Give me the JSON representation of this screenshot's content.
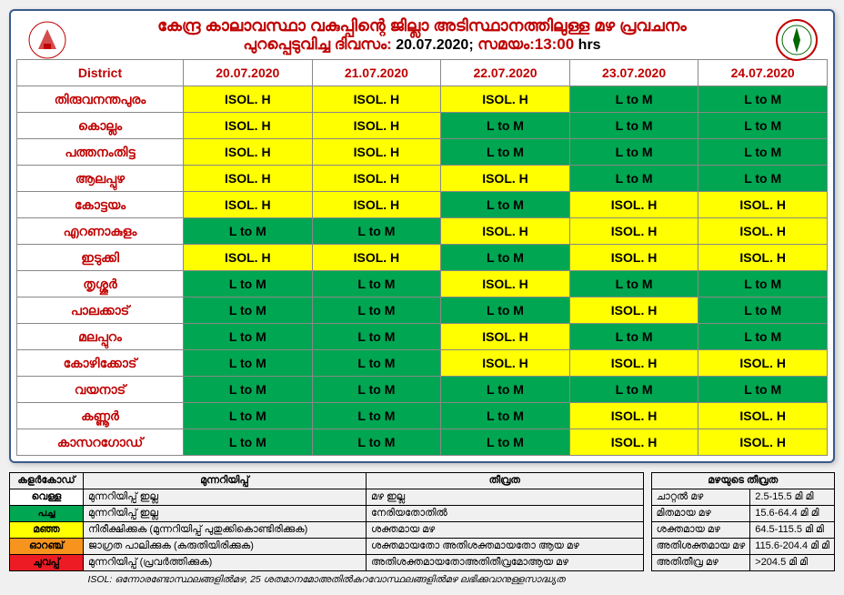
{
  "header": {
    "title": "കേന്ദ്ര കാലാവസ്ഥാ വകുപ്പിന്റെ ജില്ലാ അടിസ്ഥാനത്തിലുള്ള മഴ പ്രവചനം",
    "subtitle": "പുറപ്പെടുവിച്ച ദിവസം:",
    "date": "20.07.2020;",
    "time_label": "സമയം:13:00",
    "hrs": "hrs"
  },
  "columns": [
    "District",
    "20.07.2020",
    "21.07.2020",
    "22.07.2020",
    "23.07.2020",
    "24.07.2020"
  ],
  "colors": {
    "green": "#00a651",
    "yellow": "#ffff00",
    "orange": "#f7941d",
    "red": "#ed1c24",
    "white": "#ffffff",
    "header_red": "#c00000"
  },
  "districts": [
    {
      "name": "തിരുവനന്തപുരം",
      "cells": [
        {
          "v": "ISOL. H",
          "c": "yellow"
        },
        {
          "v": "ISOL. H",
          "c": "yellow"
        },
        {
          "v": "ISOL. H",
          "c": "yellow"
        },
        {
          "v": "L to M",
          "c": "green"
        },
        {
          "v": "L to M",
          "c": "green"
        }
      ]
    },
    {
      "name": "കൊല്ലം",
      "cells": [
        {
          "v": "ISOL. H",
          "c": "yellow"
        },
        {
          "v": "ISOL. H",
          "c": "yellow"
        },
        {
          "v": "L to M",
          "c": "green"
        },
        {
          "v": "L to M",
          "c": "green"
        },
        {
          "v": "L to M",
          "c": "green"
        }
      ]
    },
    {
      "name": "പത്തനംതിട്ട",
      "cells": [
        {
          "v": "ISOL. H",
          "c": "yellow"
        },
        {
          "v": "ISOL. H",
          "c": "yellow"
        },
        {
          "v": "L to M",
          "c": "green"
        },
        {
          "v": "L to M",
          "c": "green"
        },
        {
          "v": "L to M",
          "c": "green"
        }
      ]
    },
    {
      "name": "ആലപ്പുഴ",
      "cells": [
        {
          "v": "ISOL. H",
          "c": "yellow"
        },
        {
          "v": "ISOL. H",
          "c": "yellow"
        },
        {
          "v": "ISOL. H",
          "c": "yellow"
        },
        {
          "v": "L to M",
          "c": "green"
        },
        {
          "v": "L to M",
          "c": "green"
        }
      ]
    },
    {
      "name": "കോട്ടയം",
      "cells": [
        {
          "v": "ISOL. H",
          "c": "yellow"
        },
        {
          "v": "ISOL. H",
          "c": "yellow"
        },
        {
          "v": "L to M",
          "c": "green"
        },
        {
          "v": "ISOL. H",
          "c": "yellow"
        },
        {
          "v": "ISOL. H",
          "c": "yellow"
        }
      ]
    },
    {
      "name": "എറണാകുളം",
      "cells": [
        {
          "v": "L to M",
          "c": "green"
        },
        {
          "v": "L to M",
          "c": "green"
        },
        {
          "v": "ISOL. H",
          "c": "yellow"
        },
        {
          "v": "ISOL. H",
          "c": "yellow"
        },
        {
          "v": "ISOL. H",
          "c": "yellow"
        }
      ]
    },
    {
      "name": "ഇടുക്കി",
      "cells": [
        {
          "v": "ISOL. H",
          "c": "yellow"
        },
        {
          "v": "ISOL. H",
          "c": "yellow"
        },
        {
          "v": "L to M",
          "c": "green"
        },
        {
          "v": "ISOL. H",
          "c": "yellow"
        },
        {
          "v": "ISOL. H",
          "c": "yellow"
        }
      ]
    },
    {
      "name": "തൃശ്ശൂർ",
      "cells": [
        {
          "v": "L to M",
          "c": "green"
        },
        {
          "v": "L to M",
          "c": "green"
        },
        {
          "v": "ISOL. H",
          "c": "yellow"
        },
        {
          "v": "L to M",
          "c": "green"
        },
        {
          "v": "L to M",
          "c": "green"
        }
      ]
    },
    {
      "name": "പാലക്കാട്",
      "cells": [
        {
          "v": "L to M",
          "c": "green"
        },
        {
          "v": "L to M",
          "c": "green"
        },
        {
          "v": "L to M",
          "c": "green"
        },
        {
          "v": "ISOL. H",
          "c": "yellow"
        },
        {
          "v": "L to M",
          "c": "green"
        }
      ]
    },
    {
      "name": "മലപ്പുറം",
      "cells": [
        {
          "v": "L to M",
          "c": "green"
        },
        {
          "v": "L to M",
          "c": "green"
        },
        {
          "v": "ISOL. H",
          "c": "yellow"
        },
        {
          "v": "L to M",
          "c": "green"
        },
        {
          "v": "L to M",
          "c": "green"
        }
      ]
    },
    {
      "name": "കോഴിക്കോട്",
      "cells": [
        {
          "v": "L to M",
          "c": "green"
        },
        {
          "v": "L to M",
          "c": "green"
        },
        {
          "v": "ISOL. H",
          "c": "yellow"
        },
        {
          "v": "ISOL. H",
          "c": "yellow"
        },
        {
          "v": "ISOL. H",
          "c": "yellow"
        }
      ]
    },
    {
      "name": "വയനാട്",
      "cells": [
        {
          "v": "L to M",
          "c": "green"
        },
        {
          "v": "L to M",
          "c": "green"
        },
        {
          "v": "L to M",
          "c": "green"
        },
        {
          "v": "L to M",
          "c": "green"
        },
        {
          "v": "L to M",
          "c": "green"
        }
      ]
    },
    {
      "name": "കണ്ണൂർ",
      "cells": [
        {
          "v": "L to M",
          "c": "green"
        },
        {
          "v": "L to M",
          "c": "green"
        },
        {
          "v": "L to M",
          "c": "green"
        },
        {
          "v": "ISOL. H",
          "c": "yellow"
        },
        {
          "v": "ISOL. H",
          "c": "yellow"
        }
      ]
    },
    {
      "name": "കാസറഗോഡ്",
      "cells": [
        {
          "v": "L to M",
          "c": "green"
        },
        {
          "v": "L to M",
          "c": "green"
        },
        {
          "v": "L to M",
          "c": "green"
        },
        {
          "v": "ISOL. H",
          "c": "yellow"
        },
        {
          "v": "ISOL. H",
          "c": "yellow"
        }
      ]
    }
  ],
  "legend": {
    "headers": [
      "കളർകോഡ്",
      "മുന്നറിയിപ്പ്",
      "തീവ്രത"
    ],
    "rows": [
      {
        "color": "white",
        "label": "വെള്ള",
        "warn": "മുന്നറിയിപ്പ് ഇല്ല",
        "intensity": "മഴ ഇല്ല"
      },
      {
        "color": "green",
        "label": "പച്ച",
        "warn": "മുന്നറിയിപ്പ് ഇല്ല",
        "intensity": "നേരിയതോതിൽ"
      },
      {
        "color": "yellow",
        "label": "മഞ്ഞ",
        "warn": "നിരീക്ഷിക്കുക (മുന്നറിയിപ്പ് പുതുക്കികൊണ്ടിരിക്കുക)",
        "intensity": "ശക്തമായ മഴ"
      },
      {
        "color": "orange",
        "label": "ഓറഞ്ച്",
        "warn": "ജാഗ്രത പാലിക്കുക (കരുതിയിരിക്കുക)",
        "intensity": "ശക്തമായതോ അതിശക്തമായതോ ആയ മഴ"
      },
      {
        "color": "red",
        "label": "ചുവപ്പ്",
        "warn": "മുന്നറിയിപ്പ് (പ്രവർത്തിക്കുക)",
        "intensity": "അതിശക്തമായതോഅതിതീവ്രമോആയ മഴ"
      }
    ]
  },
  "rain": {
    "header": "മഴയുടെ തീവ്രത",
    "rows": [
      {
        "label": "ചാറ്റൽ മഴ",
        "val": "2.5-15.5 മി മി"
      },
      {
        "label": "മിതമായ മഴ",
        "val": "15.6-64.4 മി മി"
      },
      {
        "label": "ശക്തമായ മഴ",
        "val": "64.5-115.5 മി മി"
      },
      {
        "label": "അതിശക്തമായ മഴ",
        "val": "115.6-204.4 മി മി"
      },
      {
        "label": "അതിതീവ്ര മഴ",
        "val": ">204.5 മി മി"
      }
    ]
  },
  "footnote": "ISOL: ഒന്നോരണ്ടോസ്ഥലങ്ങളിൽമഴ, 25 ശതമാനമോഅതിൽകുറവോസ്ഥലങ്ങളിൽമഴ ലഭിക്കുവാനുള്ളസാദ്ധ്യത"
}
